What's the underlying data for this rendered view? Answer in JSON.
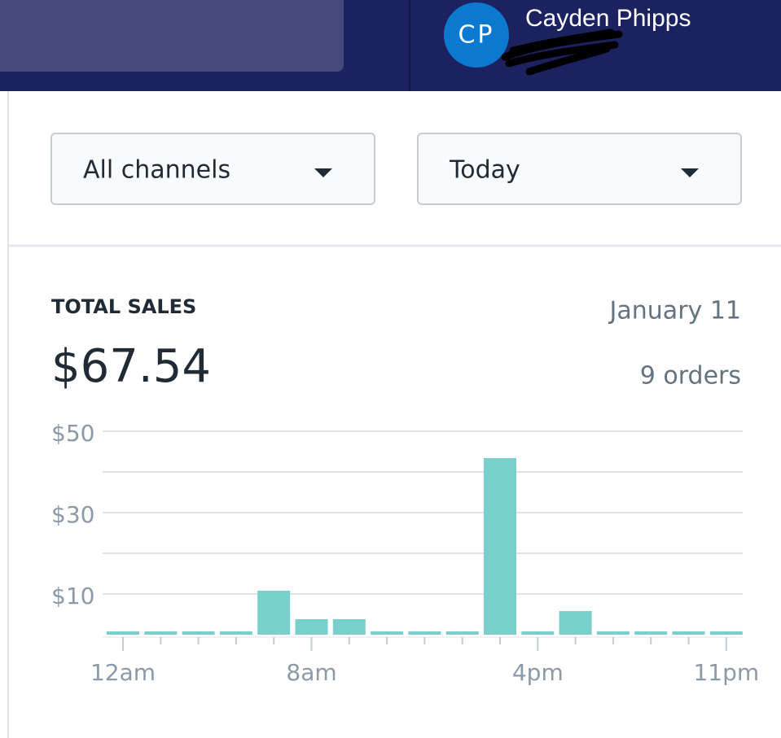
{
  "header": {
    "avatar_initials": "CP",
    "user_name": "Cayden Phipps"
  },
  "filters": {
    "channel": "All channels",
    "period": "Today"
  },
  "summary": {
    "label": "TOTAL SALES",
    "total": "$67.54",
    "date": "January 11",
    "orders": "9 orders"
  },
  "chart_data": {
    "type": "bar",
    "categories": [
      "12am",
      null,
      null,
      null,
      null,
      "8am",
      null,
      null,
      null,
      null,
      null,
      "4pm",
      null,
      null,
      null,
      null,
      "11pm"
    ],
    "values": [
      0,
      0,
      0,
      0,
      10.8,
      3.8,
      3.8,
      0,
      0,
      0,
      43.4,
      0,
      5.8,
      0,
      0,
      0,
      0
    ],
    "color": "#78cfcc",
    "ylim": [
      0,
      50
    ],
    "yticks": [
      {
        "value": 10,
        "label": "$10"
      },
      {
        "value": 30,
        "label": "$30"
      },
      {
        "value": 50,
        "label": "$50"
      }
    ],
    "ygrid": [
      10,
      20,
      30,
      40,
      50
    ],
    "grid": true
  }
}
